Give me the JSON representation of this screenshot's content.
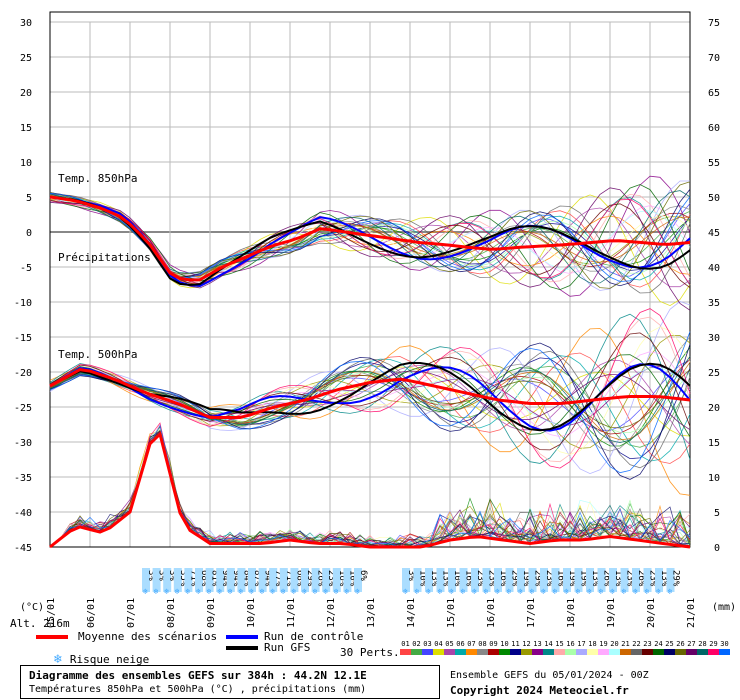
{
  "chart_data": {
    "type": "line",
    "left_axis_unit": "(°C)",
    "right_axis_unit": "(mm)",
    "left_ticks": [
      30,
      25,
      20,
      15,
      10,
      5,
      0,
      -5,
      -10,
      -15,
      -20,
      -25,
      -30,
      -35,
      -40,
      -45
    ],
    "right_ticks": [
      75,
      70,
      65,
      60,
      55,
      50,
      45,
      40,
      35,
      30,
      25,
      20,
      15,
      10,
      5,
      0
    ],
    "ylim_temp": [
      -45,
      30
    ],
    "ylim_precip": [
      0,
      75
    ],
    "x_dates": [
      "05/01",
      "06/01",
      "07/01",
      "08/01",
      "09/01",
      "10/01",
      "11/01",
      "12/01",
      "13/01",
      "14/01",
      "15/01",
      "16/01",
      "17/01",
      "18/01",
      "19/01",
      "20/01",
      "21/01"
    ],
    "labels": {
      "t850": "Temp. 850hPa",
      "precip": "Précipitations",
      "t500": "Temp. 500hPa"
    },
    "series_mean_t850": [
      5,
      4.5,
      3.5,
      2,
      -1.5,
      -6.5,
      -7,
      -5,
      -3.5,
      -2,
      -1,
      0.5,
      0,
      -0.5,
      -1,
      -1.5,
      -1.8,
      -2.2,
      -2.5,
      -2.2,
      -2,
      -1.8,
      -1.5,
      -1.2,
      -1.5,
      -1.8,
      -1.5
    ],
    "series_mean_t500": [
      -22,
      -19.5,
      -21,
      -23,
      -24.5,
      -26.5,
      -26.5,
      -25,
      -24,
      -22.5,
      -21.5,
      -21,
      -22,
      -23,
      -24,
      -24.5,
      -24.5,
      -24,
      -23.5,
      -23.5,
      -24
    ],
    "series_mean_precip": [
      0,
      3,
      2,
      5,
      18,
      3,
      0.5,
      0.5,
      0.5,
      1,
      0.5,
      0.5,
      0,
      0,
      0,
      1,
      1.5,
      1,
      0.5,
      1,
      1,
      1.5,
      1,
      0.5,
      0
    ],
    "snow_risk_pct_run1": [
      "3%",
      "3%",
      "3%",
      "35%",
      "71%",
      "68%",
      "81%",
      "94%",
      "94%",
      "84%",
      "87%",
      "94%",
      "77%",
      "71%",
      "68%",
      "29%",
      "26%",
      "23%",
      "16%",
      "10%",
      "6%"
    ],
    "snow_risk_pct_run2": [
      "3%",
      "10%",
      "13%",
      "13%",
      "10%",
      "16%",
      "23%",
      "23%",
      "16%",
      "29%",
      "19%",
      "29%",
      "23%",
      "16%",
      "19%",
      "19%",
      "13%",
      "26%",
      "13%",
      "23%",
      "26%",
      "23%",
      "13%",
      "29%"
    ]
  },
  "legend": {
    "mean": "Moyenne des scénarios",
    "control": "Run de contrôle",
    "gfs": "Run GFS",
    "snow": "Risque neige",
    "perts": "30 Perts.",
    "alt": "Alt. 216m",
    "pert_nums": [
      "01",
      "02",
      "03",
      "04",
      "05",
      "06",
      "07",
      "08",
      "09",
      "10",
      "11",
      "12",
      "13",
      "14",
      "15",
      "16",
      "17",
      "18",
      "19",
      "20",
      "21",
      "22",
      "23",
      "24",
      "25",
      "26",
      "27",
      "28",
      "29",
      "30"
    ],
    "pert_colors": [
      "#ff4444",
      "#44aa44",
      "#4444ff",
      "#dddd00",
      "#aa44aa",
      "#00aaaa",
      "#ff8800",
      "#888888",
      "#aa0000",
      "#008800",
      "#000088",
      "#999900",
      "#880088",
      "#008888",
      "#ffaaaa",
      "#aaffaa",
      "#aaaaff",
      "#ffffaa",
      "#ffaaff",
      "#aaffff",
      "#cc6600",
      "#666666",
      "#660000",
      "#006600",
      "#000066",
      "#666600",
      "#660066",
      "#006666",
      "#ff0066",
      "#0066ff"
    ]
  },
  "footer": {
    "title": "Diagramme des ensembles GEFS sur 384h : 44.2N 12.1E",
    "subtitle": "Températures 850hPa et 500hPa (°C) , précipitations (mm)",
    "run": "Ensemble GEFS du 05/01/2024 - 00Z",
    "copyright": "Copyright 2024 Meteociel.fr"
  },
  "colors": {
    "mean": "#ff0000",
    "control": "#0000ff",
    "gfs": "#000000",
    "grid": "#bbbbbb",
    "snow_bar": "#aaddff"
  }
}
